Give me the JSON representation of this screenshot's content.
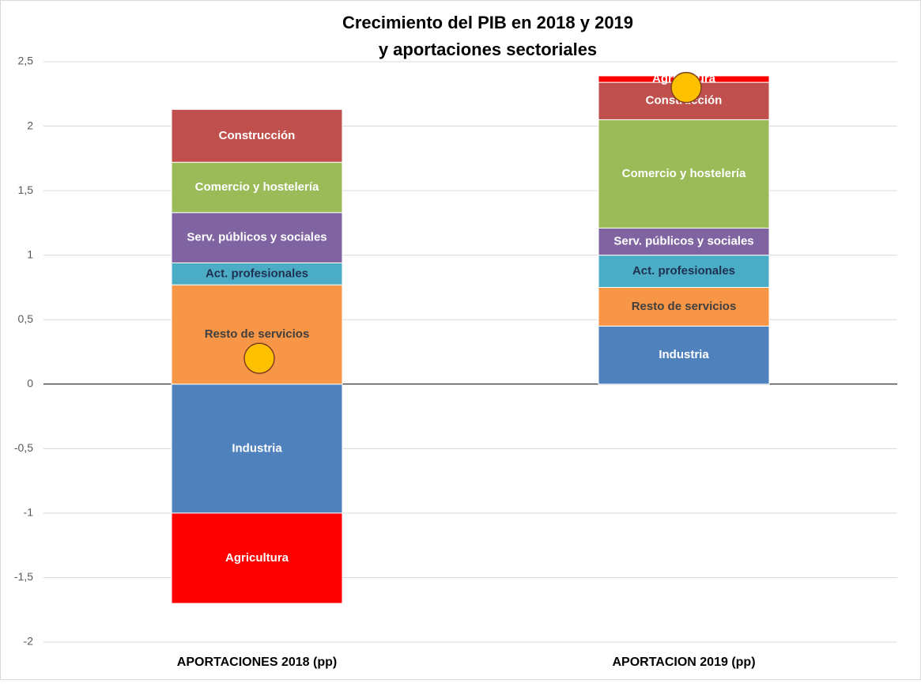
{
  "chart_data": {
    "type": "stacked_bar",
    "title": "Crecimiento del PIB en 2018 y 2019",
    "subtitle": "y aportaciones sectoriales",
    "categories": [
      "APORTACIONES 2018 (pp)",
      "APORTACION 2019 (pp)"
    ],
    "series": [
      {
        "name": "Industria",
        "color": "#4f81bd",
        "label_color": "#ffffff",
        "values": [
          -1.0,
          0.45
        ]
      },
      {
        "name": "Resto de servicios",
        "color": "#f79646",
        "label_color": "#404040",
        "values": [
          0.77,
          0.3
        ]
      },
      {
        "name": "Act.  profesionales",
        "color": "#4bacc6",
        "label_color": "#1f3050",
        "values": [
          0.17,
          0.25
        ]
      },
      {
        "name": "Serv. públicos y sociales",
        "color": "#8064a2",
        "label_color": "#ffffff",
        "values": [
          0.39,
          0.21
        ]
      },
      {
        "name": "Comercio y hostelería",
        "color": "#9bbb59",
        "label_color": "#ffffff",
        "values": [
          0.39,
          0.84
        ]
      },
      {
        "name": "Construcción",
        "color": "#c0504d",
        "label_color": "#ffffff",
        "values": [
          0.41,
          0.29
        ]
      },
      {
        "name": "Agricultura",
        "color": "#ff0000",
        "label_color": "#ffffff",
        "values": [
          -0.7,
          0.05
        ]
      }
    ],
    "totals": {
      "color": "#ffc000",
      "values": [
        0.2,
        2.3
      ]
    },
    "ylim": [
      -2,
      2.5
    ],
    "yticks": [
      -2,
      {
        "value": -1.5,
        "label": "-1,5"
      },
      -1,
      {
        "value": -0.5,
        "label": "-0,5"
      },
      0,
      {
        "value": 0.5,
        "label": "0,5"
      },
      1,
      {
        "value": 1.5,
        "label": "1,5"
      },
      2,
      {
        "value": 2.5,
        "label": "2,5"
      }
    ],
    "grid": true
  }
}
